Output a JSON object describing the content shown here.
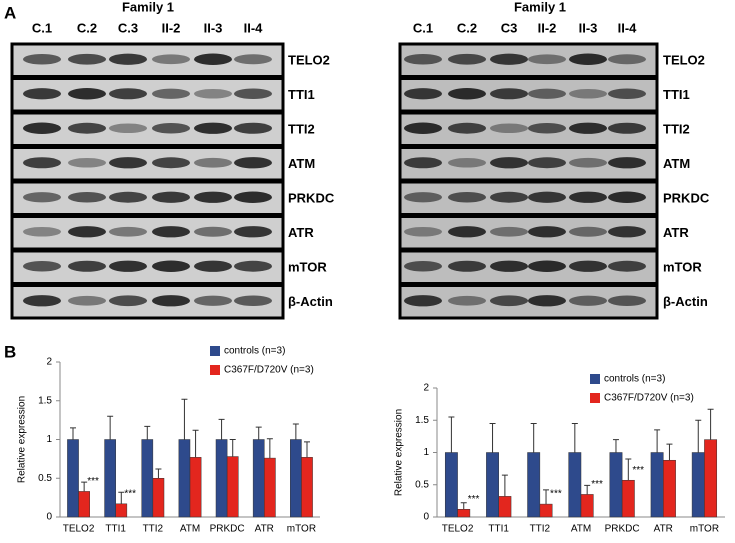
{
  "panel_labels": [
    "A",
    "B"
  ],
  "blots": [
    {
      "family": "Family 1",
      "lanes": [
        "C.1",
        "C.2",
        "C.3",
        "II-2",
        "II-3",
        "II-4"
      ],
      "proteins": [
        "TELO2",
        "TTI1",
        "TTI2",
        "ATM",
        "PRKDC",
        "ATR",
        "mTOR",
        "β-Actin"
      ]
    },
    {
      "family": "Family 1",
      "lanes": [
        "C.1",
        "C.2",
        "C3",
        "II-2",
        "II-3",
        "II-4"
      ],
      "proteins": [
        "TELO2",
        "TTI1",
        "TTI2",
        "ATM",
        "PRKDC",
        "ATR",
        "mTOR",
        "β-Actin"
      ]
    }
  ],
  "chart_data": [
    {
      "type": "bar",
      "y_label": "Relative expression",
      "categories": [
        "TELO2",
        "TTI1",
        "TTI2",
        "ATM",
        "PRKDC",
        "ATR",
        "mTOR"
      ],
      "series": [
        {
          "name": "controls (n=3)",
          "color": "#2e4a8c",
          "values": [
            1,
            1,
            1,
            1,
            1,
            1,
            1
          ],
          "errors": [
            0.15,
            0.3,
            0.17,
            0.52,
            0.26,
            0.16,
            0.2
          ]
        },
        {
          "name": "C367F/D720V (n=3)",
          "color": "#e3261e",
          "values": [
            0.33,
            0.17,
            0.5,
            0.77,
            0.78,
            0.76,
            0.77
          ],
          "errors": [
            0.12,
            0.15,
            0.12,
            0.35,
            0.22,
            0.25,
            0.2
          ]
        }
      ],
      "significance": [
        "***",
        "***",
        null,
        null,
        null,
        null,
        null
      ],
      "ylim": [
        0,
        2
      ],
      "yticks": [
        0,
        0.5,
        1,
        1.5,
        2
      ]
    },
    {
      "type": "bar",
      "y_label": "Relative expression",
      "categories": [
        "TELO2",
        "TTI1",
        "TTI2",
        "ATM",
        "PRKDC",
        "ATR",
        "mTOR"
      ],
      "series": [
        {
          "name": "controls (n=3)",
          "color": "#2e4a8c",
          "values": [
            1,
            1,
            1,
            1,
            1,
            1,
            1
          ],
          "errors": [
            0.55,
            0.45,
            0.45,
            0.45,
            0.2,
            0.35,
            0.5
          ]
        },
        {
          "name": "C367F/D720V (n=3)",
          "color": "#e3261e",
          "values": [
            0.12,
            0.32,
            0.2,
            0.35,
            0.57,
            0.88,
            1.2
          ],
          "errors": [
            0.1,
            0.33,
            0.22,
            0.14,
            0.33,
            0.25,
            0.47
          ]
        }
      ],
      "significance": [
        "***",
        null,
        "***",
        "***",
        "***",
        null,
        null
      ],
      "ylim": [
        0,
        2
      ],
      "yticks": [
        0,
        0.5,
        1,
        1.5,
        2
      ]
    }
  ]
}
